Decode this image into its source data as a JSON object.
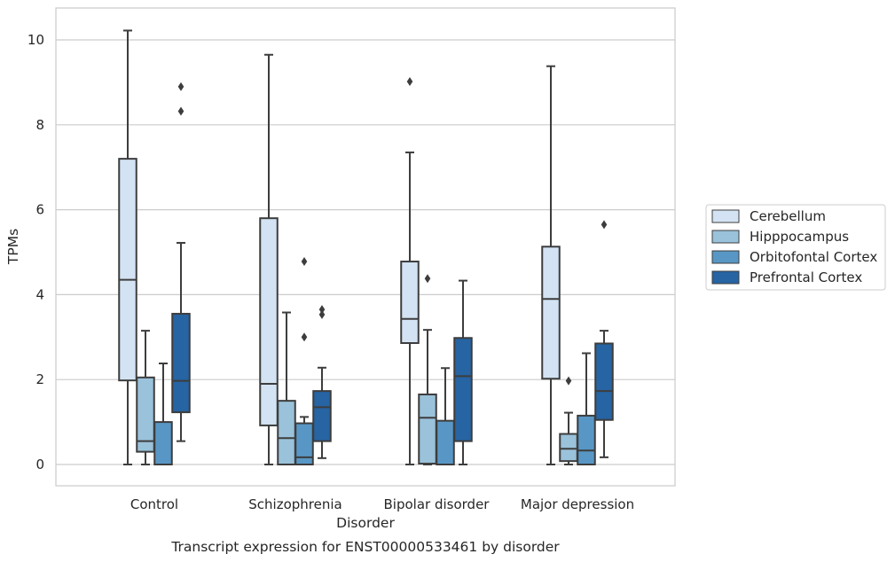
{
  "chart_data": {
    "type": "box",
    "caption": "Transcript expression for ENST00000533461 by disorder",
    "xlabel": "Disorder",
    "ylabel": "TPMs",
    "ylim": [
      -0.5,
      10.75
    ],
    "yticks": [
      0,
      2,
      4,
      6,
      8,
      10
    ],
    "grid": true,
    "legend_position": "right",
    "categories": [
      "Control",
      "Schizophrenia",
      "Bipolar disorder",
      "Major depression"
    ],
    "series": [
      {
        "name": "Cerebellum",
        "color": "#d3e3f3",
        "boxes": [
          {
            "whislo": 0.0,
            "q1": 1.98,
            "med": 4.35,
            "q3": 7.2,
            "whishi": 10.22,
            "fliers": []
          },
          {
            "whislo": 0.0,
            "q1": 0.92,
            "med": 1.9,
            "q3": 5.8,
            "whishi": 9.65,
            "fliers": []
          },
          {
            "whislo": 0.0,
            "q1": 2.86,
            "med": 3.43,
            "q3": 4.78,
            "whishi": 7.35,
            "fliers": [
              9.02
            ]
          },
          {
            "whislo": 0.0,
            "q1": 2.02,
            "med": 3.9,
            "q3": 5.13,
            "whishi": 9.38,
            "fliers": []
          }
        ]
      },
      {
        "name": "Hipppocampus",
        "color": "#9ac2da",
        "boxes": [
          {
            "whislo": 0.0,
            "q1": 0.3,
            "med": 0.55,
            "q3": 2.05,
            "whishi": 3.15,
            "fliers": []
          },
          {
            "whislo": 0.0,
            "q1": 0.0,
            "med": 0.62,
            "q3": 1.5,
            "whishi": 3.58,
            "fliers": []
          },
          {
            "whislo": 0.0,
            "q1": 0.02,
            "med": 1.1,
            "q3": 1.65,
            "whishi": 3.17,
            "fliers": [
              4.38
            ]
          },
          {
            "whislo": 0.0,
            "q1": 0.08,
            "med": 0.37,
            "q3": 0.72,
            "whishi": 1.22,
            "fliers": [
              1.97
            ]
          }
        ]
      },
      {
        "name": "Orbitofontal Cortex",
        "color": "#5897c5",
        "boxes": [
          {
            "whislo": 0.0,
            "q1": 0.0,
            "med": 0.0,
            "q3": 1.0,
            "whishi": 2.38,
            "fliers": []
          },
          {
            "whislo": 0.0,
            "q1": 0.0,
            "med": 0.17,
            "q3": 0.97,
            "whishi": 1.12,
            "fliers": [
              4.78,
              3.0
            ]
          },
          {
            "whislo": 0.0,
            "q1": 0.0,
            "med": 0.0,
            "q3": 1.03,
            "whishi": 2.27,
            "fliers": []
          },
          {
            "whislo": 0.0,
            "q1": 0.0,
            "med": 0.33,
            "q3": 1.15,
            "whishi": 2.62,
            "fliers": []
          }
        ]
      },
      {
        "name": "Prefrontal Cortex",
        "color": "#2664a3",
        "boxes": [
          {
            "whislo": 0.55,
            "q1": 1.23,
            "med": 1.97,
            "q3": 3.55,
            "whishi": 5.22,
            "fliers": [
              8.9,
              8.32
            ]
          },
          {
            "whislo": 0.15,
            "q1": 0.55,
            "med": 1.35,
            "q3": 1.73,
            "whishi": 2.28,
            "fliers": [
              3.65,
              3.53
            ]
          },
          {
            "whislo": 0.0,
            "q1": 0.55,
            "med": 2.08,
            "q3": 2.98,
            "whishi": 4.33,
            "fliers": []
          },
          {
            "whislo": 0.17,
            "q1": 1.05,
            "med": 1.73,
            "q3": 2.85,
            "whishi": 3.15,
            "fliers": [
              5.65
            ]
          }
        ]
      }
    ]
  }
}
